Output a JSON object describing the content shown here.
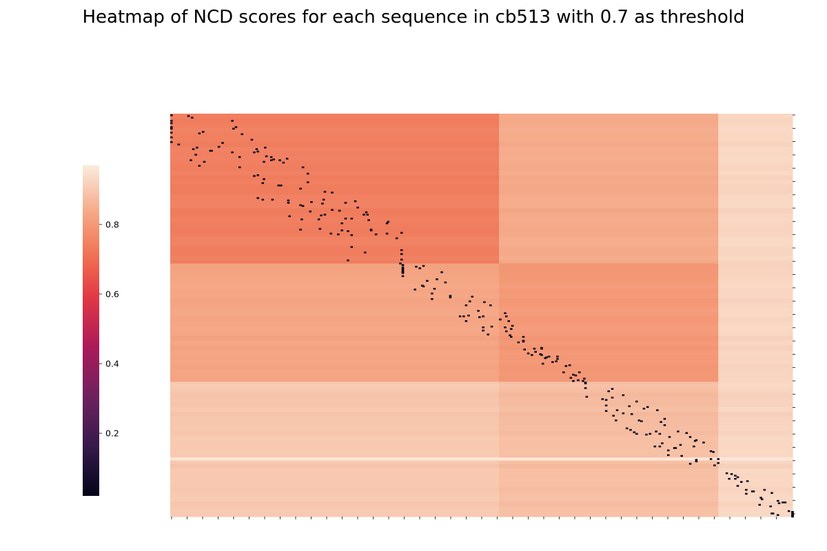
{
  "chart_data": {
    "type": "heatmap",
    "title": "Heatmap of NCD scores for each sequence in cb513 with 0.7 as threshold",
    "xlabel": "",
    "ylabel": "",
    "x_tick_labels": "none (ticks only, no labels)",
    "y_tick_labels": "none (ticks only, no labels)",
    "n_rows": 511,
    "n_cols": 511,
    "grid": false,
    "colormap": "rocket",
    "colorbar": {
      "position": "left",
      "range": [
        0.02,
        0.97
      ],
      "ticks": [
        0.2,
        0.4,
        0.6,
        0.8
      ],
      "tick_labels": [
        "0.2",
        "0.4",
        "0.6",
        "0.8"
      ]
    },
    "blocks": [
      {
        "rows": [
          0,
          190
        ],
        "cols": [
          0,
          270
        ],
        "value": 0.74
      },
      {
        "rows": [
          0,
          190
        ],
        "cols": [
          270,
          450
        ],
        "value": 0.84
      },
      {
        "rows": [
          0,
          190
        ],
        "cols": [
          450,
          511
        ],
        "value": 0.93
      },
      {
        "rows": [
          190,
          340
        ],
        "cols": [
          0,
          270
        ],
        "value": 0.83
      },
      {
        "rows": [
          190,
          340
        ],
        "cols": [
          270,
          450
        ],
        "value": 0.8
      },
      {
        "rows": [
          190,
          340
        ],
        "cols": [
          450,
          511
        ],
        "value": 0.93
      },
      {
        "rows": [
          340,
          511
        ],
        "cols": [
          0,
          270
        ],
        "value": 0.9
      },
      {
        "rows": [
          340,
          511
        ],
        "cols": [
          270,
          450
        ],
        "value": 0.88
      },
      {
        "rows": [
          340,
          511
        ],
        "cols": [
          450,
          511
        ],
        "value": 0.93
      }
    ],
    "low_score_marker_value": 0.02,
    "low_score_cells_note": "Dark cells (NCD near 0.02) lie mostly along the block diagonal; pairs below the 0.7 threshold."
  }
}
